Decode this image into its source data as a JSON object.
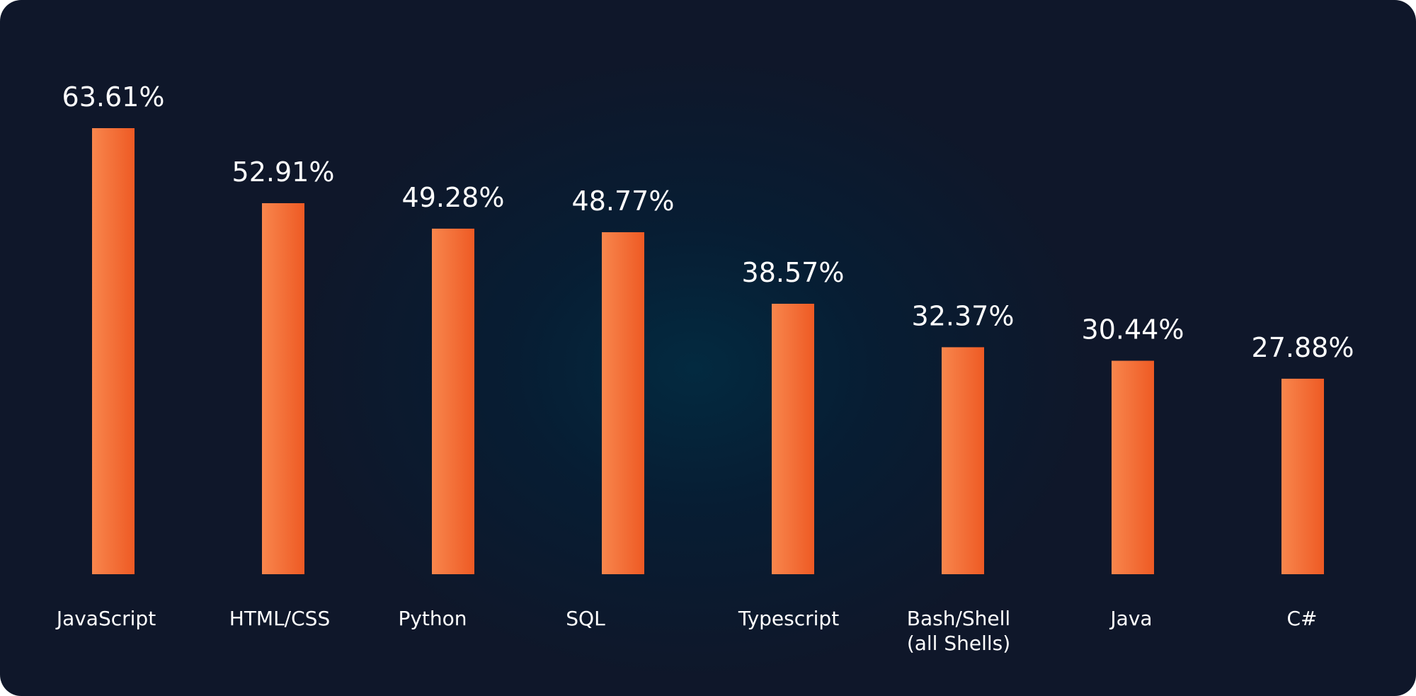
{
  "chart_data": {
    "type": "bar",
    "categories": [
      "JavaScript",
      "HTML/CSS",
      "Python",
      "SQL",
      "Typescript",
      "Bash/Shell (all Shells)",
      "Java",
      "C#"
    ],
    "category_lines": [
      [
        "JavaScript"
      ],
      [
        "HTML/CSS"
      ],
      [
        "Python"
      ],
      [
        "SQL"
      ],
      [
        "Typescript"
      ],
      [
        "Bash/Shell",
        "(all Shells)"
      ],
      [
        "Java"
      ],
      [
        "C#"
      ]
    ],
    "values": [
      63.61,
      52.91,
      49.28,
      48.77,
      38.57,
      32.37,
      30.44,
      27.88
    ],
    "value_labels": [
      "63.61%",
      "52.91%",
      "49.28%",
      "48.77%",
      "38.57%",
      "32.37%",
      "30.44%",
      "27.88%"
    ],
    "ylim": [
      0,
      63.61
    ],
    "grid": false,
    "legend": "none"
  },
  "colors": {
    "bar_light": "#f8864d",
    "bar_dark": "#ee5a24",
    "text": "#ffffff"
  }
}
